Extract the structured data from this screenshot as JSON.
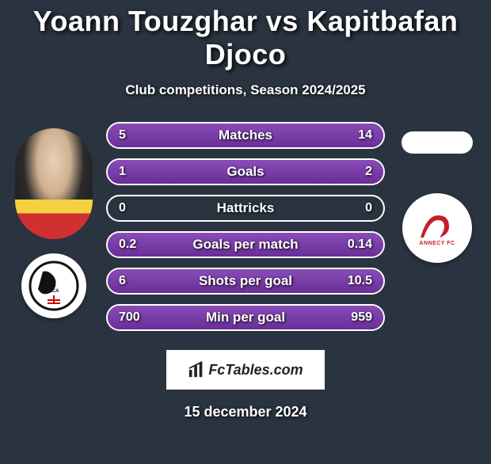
{
  "title": "Yoann Touzghar vs Kapitbafan Djoco",
  "subtitle": "Club competitions, Season 2024/2025",
  "date": "15 december 2024",
  "brand": "FcTables.com",
  "left_club_badge_label": "ACA",
  "right_club_badge_label": "ANNECY FC",
  "colors": {
    "bg": "#2a3440",
    "pill_border": "#ffffff",
    "fill_gradient_top": "#8a4db8",
    "fill_gradient_bottom": "#6a2e98",
    "annecy_red": "#c41e2f"
  },
  "stats": [
    {
      "label": "Matches",
      "l": "5",
      "r": "14",
      "l_pct": 26,
      "r_pct": 74
    },
    {
      "label": "Goals",
      "l": "1",
      "r": "2",
      "l_pct": 33,
      "r_pct": 67
    },
    {
      "label": "Hattricks",
      "l": "0",
      "r": "0",
      "l_pct": 0,
      "r_pct": 0
    },
    {
      "label": "Goals per match",
      "l": "0.2",
      "r": "0.14",
      "l_pct": 59,
      "r_pct": 41
    },
    {
      "label": "Shots per goal",
      "l": "6",
      "r": "10.5",
      "l_pct": 36,
      "r_pct": 64
    },
    {
      "label": "Min per goal",
      "l": "700",
      "r": "959",
      "l_pct": 42,
      "r_pct": 58
    }
  ]
}
